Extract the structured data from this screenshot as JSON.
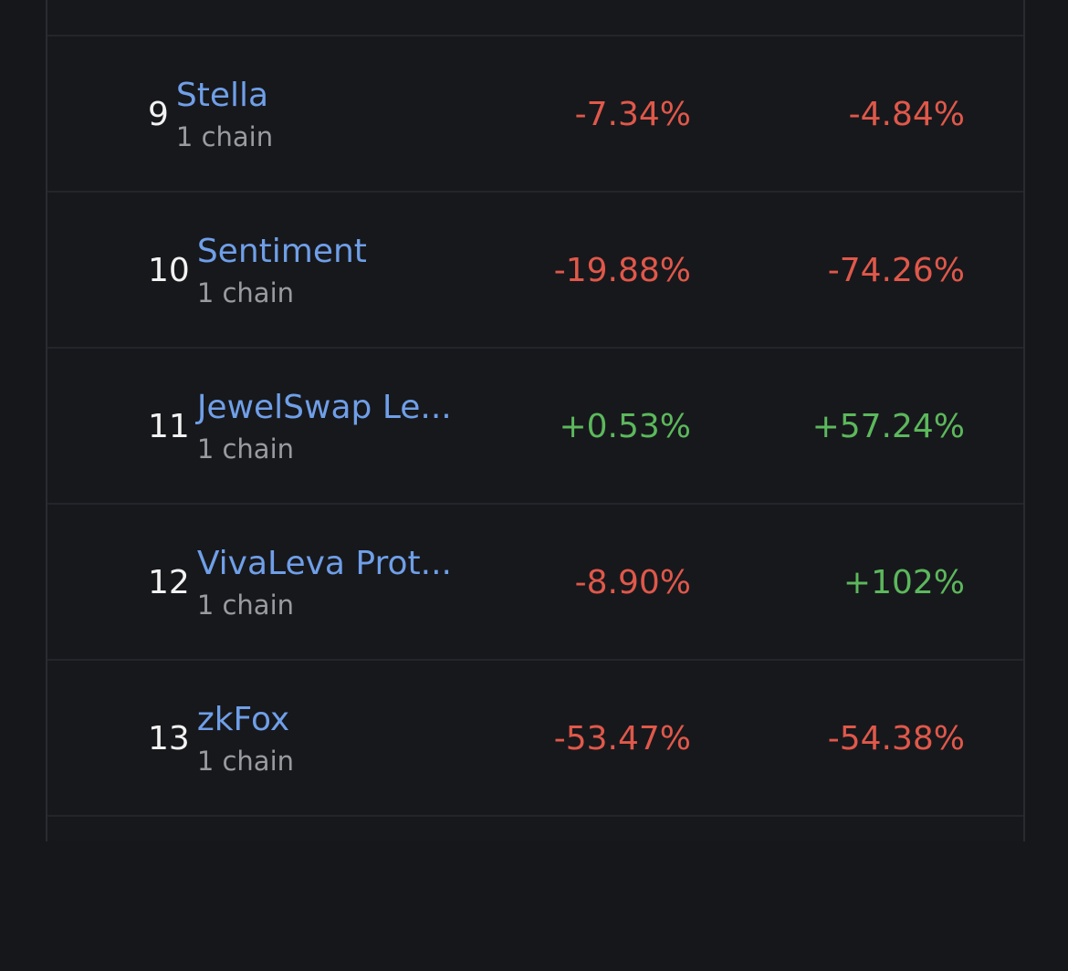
{
  "table": {
    "rows": [
      {
        "rank": "9",
        "name": "Stella",
        "chains": "1 chain",
        "change_1": "-7.34%",
        "change_2": "-4.84%"
      },
      {
        "rank": "10",
        "name": "Sentiment",
        "chains": "1 chain",
        "change_1": "-19.88%",
        "change_2": "-74.26%"
      },
      {
        "rank": "11",
        "name": "JewelSwap Le...",
        "chains": "1 chain",
        "change_1": "+0.53%",
        "change_2": "+57.24%"
      },
      {
        "rank": "12",
        "name": "VivaLeva Prot...",
        "chains": "1 chain",
        "change_1": "-8.90%",
        "change_2": "+102%"
      },
      {
        "rank": "13",
        "name": "zkFox",
        "chains": "1 chain",
        "change_1": "-53.47%",
        "change_2": "-54.38%"
      }
    ]
  }
}
